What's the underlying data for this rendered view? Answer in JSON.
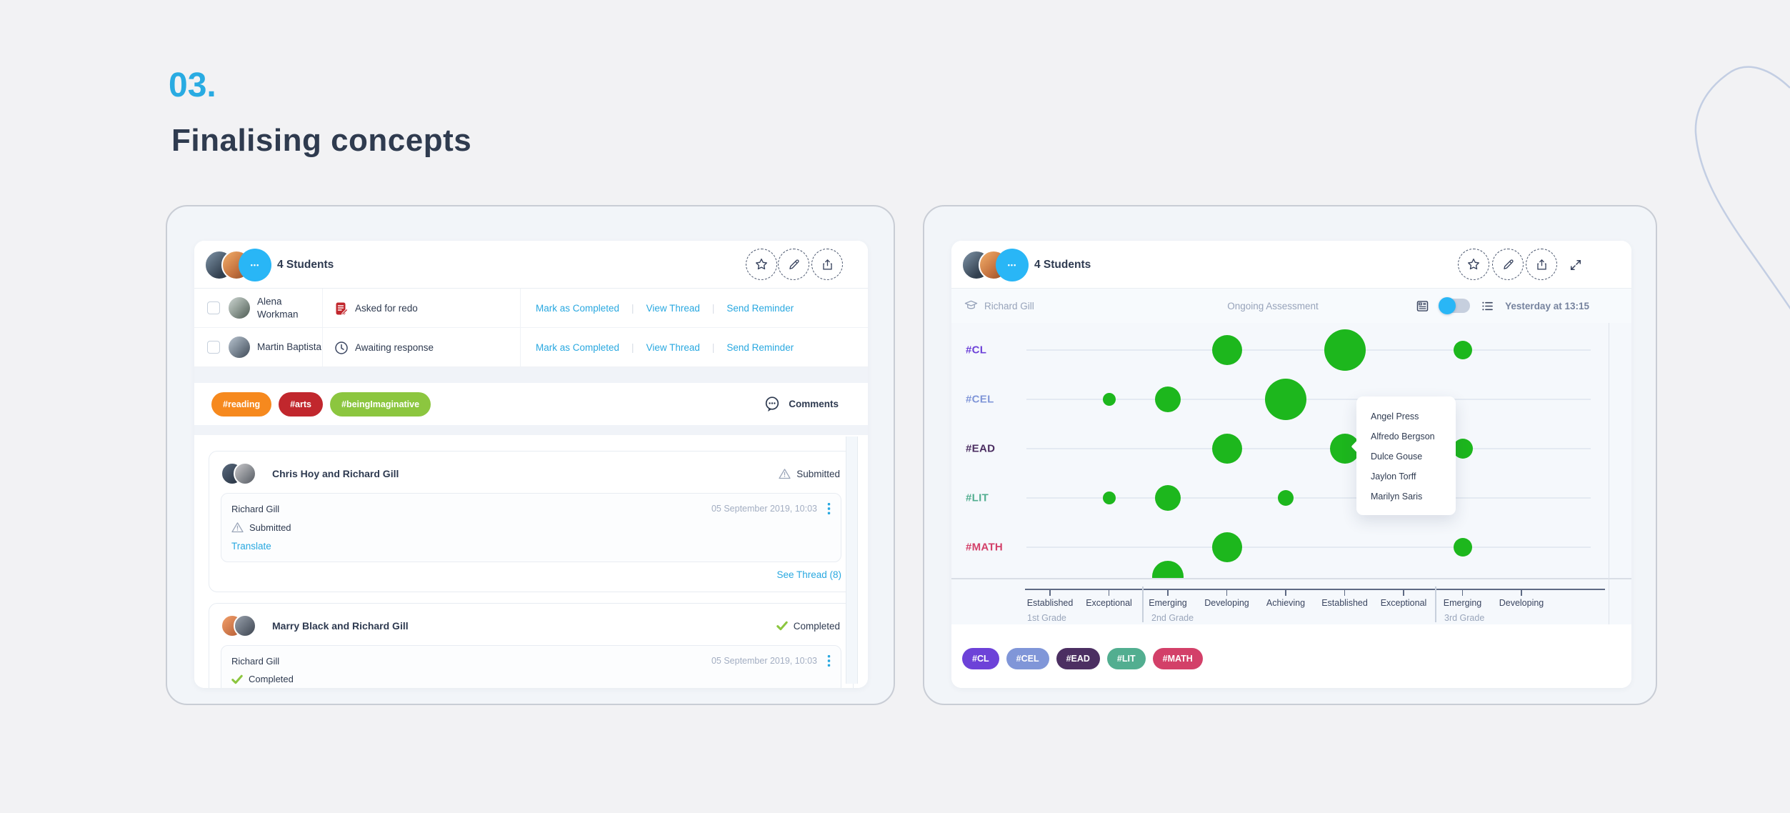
{
  "page": {
    "step_number": "03.",
    "title": "Finalising concepts",
    "accent_color": "#29ABE2"
  },
  "left_panel": {
    "header": {
      "students_count_label": "4 Students",
      "more_glyph": "•••"
    },
    "table": {
      "rows": [
        {
          "name": "Alena Workman",
          "status": "Asked for redo",
          "status_icon": "redo-doc-icon",
          "name_wraps": true
        },
        {
          "name": "Martin Baptista",
          "status": "Awaiting response",
          "status_icon": "clock-icon",
          "name_wraps": false
        }
      ],
      "row_actions": [
        "Mark as Completed",
        "View Thread",
        "Send Reminder"
      ]
    },
    "tags": [
      {
        "label": "#reading",
        "color": "#F6891E"
      },
      {
        "label": "#arts",
        "color": "#C1272D"
      },
      {
        "label": "#beingImaginative",
        "color": "#8CC63F"
      }
    ],
    "comments_label": "Comments",
    "thread_cards": [
      {
        "participants": "Chris Hoy and  Richard Gill",
        "status": "Submitted",
        "status_type": "submitted",
        "message_author": "Richard Gill",
        "timestamp": "05 September 2019, 10:03",
        "message_status": "Submitted",
        "translate_label": "Translate",
        "thread_link": "See Thread (8)"
      },
      {
        "participants": "Marry Black and  Richard Gill",
        "status": "Completed",
        "status_type": "completed",
        "message_author": "Richard Gill",
        "timestamp": "05 September 2019, 10:03",
        "message_status": "Completed"
      }
    ]
  },
  "right_panel": {
    "header": {
      "students_count_label": "4 Students",
      "more_glyph": "•••"
    },
    "subheader": {
      "student_name": "Richard Gill",
      "view_title": "Ongoing Assessment",
      "timestamp": "Yesterday at 13:15"
    },
    "tooltip_names": [
      "Angel Press",
      "Alfredo Bergson",
      "Dulce Gouse",
      "Jaylon Torff",
      "Marilyn Saris"
    ],
    "chart_data": {
      "type": "scatter",
      "title": "Ongoing Assessment",
      "bubble_color": "#1DB71D",
      "x_categories": [
        "Established",
        "Exceptional",
        "Emerging",
        "Developing",
        "Achieving",
        "Established",
        "Exceptional",
        "Emerging",
        "Developing"
      ],
      "grade_groups": [
        {
          "label": "1st Grade",
          "span": [
            1,
            2
          ]
        },
        {
          "label": "2nd Grade",
          "span": [
            3,
            7
          ]
        },
        {
          "label": "3rd Grade",
          "span": [
            8,
            9
          ]
        }
      ],
      "series": [
        {
          "label": "#CL",
          "color": "#6D42D8",
          "bubbles": [
            {
              "x": 4,
              "size": 21
            },
            {
              "x": 6,
              "size": 29
            },
            {
              "x": 8,
              "size": 13
            }
          ]
        },
        {
          "label": "#CEL",
          "color": "#8096D8",
          "bubbles": [
            {
              "x": 2,
              "size": 9
            },
            {
              "x": 3,
              "size": 18
            },
            {
              "x": 5,
              "size": 29
            }
          ]
        },
        {
          "label": "#EAD",
          "color": "#4C2F62",
          "bubbles": [
            {
              "x": 4,
              "size": 21
            },
            {
              "x": 6,
              "size": 21
            },
            {
              "x": 8,
              "size": 14
            }
          ]
        },
        {
          "label": "#LIT",
          "color": "#52AE90",
          "bubbles": [
            {
              "x": 2,
              "size": 9
            },
            {
              "x": 3,
              "size": 18
            },
            {
              "x": 5,
              "size": 11
            }
          ]
        },
        {
          "label": "#MATH",
          "color": "#D34069",
          "bubbles": [
            {
              "x": 4,
              "size": 21
            },
            {
              "x": 8,
              "size": 13
            }
          ]
        }
      ],
      "clipped_bubble": {
        "x": 3,
        "size": 22
      }
    },
    "legend_pills": [
      {
        "label": "#CL",
        "color": "#6D42D8"
      },
      {
        "label": "#CEL",
        "color": "#8096D8"
      },
      {
        "label": "#EAD",
        "color": "#4C2F62"
      },
      {
        "label": "#LIT",
        "color": "#52AE90"
      },
      {
        "label": "#MATH",
        "color": "#D34069"
      }
    ]
  }
}
